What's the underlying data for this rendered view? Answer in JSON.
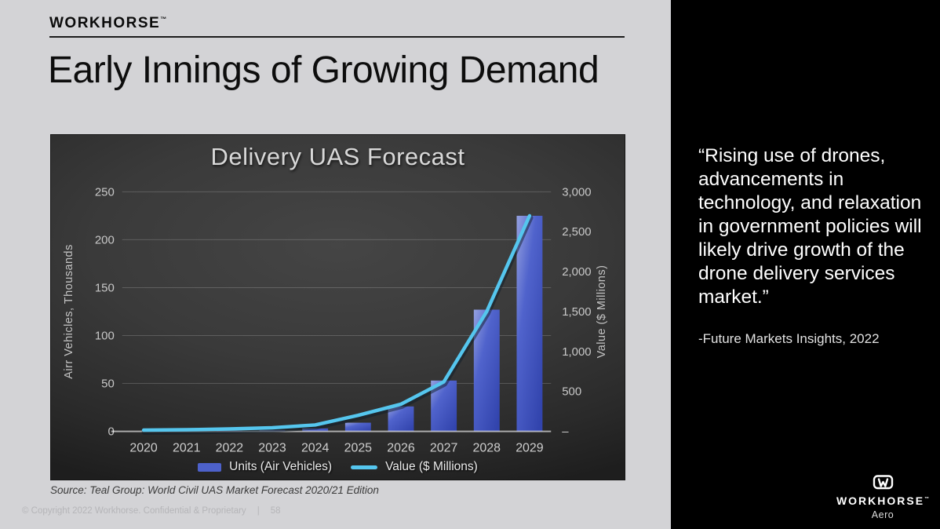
{
  "header": {
    "brand": "WORKHORSE",
    "brand_tm": "™",
    "title": "Early Innings of Growing Demand"
  },
  "chart_data": {
    "type": "bar+line",
    "title": "Delivery UAS Forecast",
    "categories": [
      "2020",
      "2021",
      "2022",
      "2023",
      "2024",
      "2025",
      "2026",
      "2027",
      "2028",
      "2029"
    ],
    "series": [
      {
        "name": "Units (Air Vehicles)",
        "type": "bar",
        "axis": "left",
        "color": "#4d61ca",
        "values": [
          0,
          0,
          0.5,
          1,
          3,
          9,
          26,
          53,
          127,
          225
        ]
      },
      {
        "name": "Value ($ Millions)",
        "type": "line",
        "axis": "right",
        "color": "#55c6ee",
        "values": [
          15,
          20,
          30,
          45,
          80,
          200,
          340,
          620,
          1500,
          2700
        ]
      }
    ],
    "left_axis": {
      "label": "Airr Vehicles, Thousands",
      "min": 0,
      "max": 250,
      "step": 50,
      "ticks": [
        "0",
        "50",
        "100",
        "150",
        "200",
        "250"
      ]
    },
    "right_axis": {
      "label": "Value ($ Millions)",
      "min": 0,
      "max": 3000,
      "step": 500,
      "ticks": [
        "–",
        "500",
        "1,000",
        "1,500",
        "2,000",
        "2,500",
        "3,000"
      ]
    },
    "legend_position": "bottom",
    "grid": true
  },
  "source_note": "Source: Teal Group: World Civil UAS Market Forecast 2020/21 Edition",
  "footer": {
    "text": "© Copyright 2022 Workhorse. Confidential & Proprietary",
    "separator": "|",
    "page": "58"
  },
  "quote_panel": {
    "quote": "“Rising use of drones, advancements in technology, and relaxation in government policies will likely drive growth of the drone delivery services market.”",
    "attribution": "-Future Markets Insights, 2022",
    "logo_text": "WORKHORSE",
    "logo_tm": "™",
    "logo_sub": "Aero"
  }
}
